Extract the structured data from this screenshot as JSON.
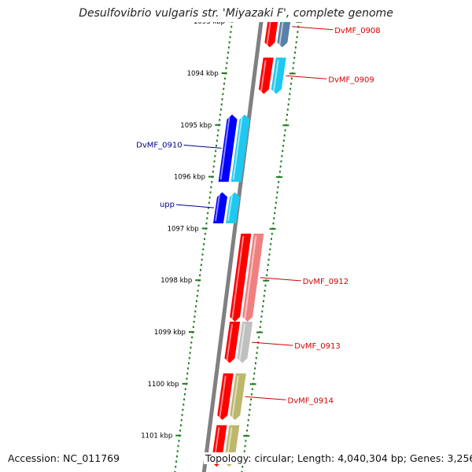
{
  "title": "Desulfovibrio vulgaris str. 'Miyazaki F', complete genome",
  "footer": {
    "accession": "Accession: NC_011769",
    "summary": "Topology: circular; Length: 4,040,304 bp; Genes: 3,256"
  },
  "colors": {
    "backbone": "#808080",
    "tick": "#1f7a1f",
    "label_forward": "#00008b",
    "label_reverse": "#d40000",
    "tick_label": "#000000"
  },
  "diagram": {
    "type": "linear genome map (zoomed circular)",
    "position_unit": "kbp",
    "ticks": [
      {
        "label": "1093 kbp",
        "pos": 1093
      },
      {
        "label": "1094 kbp",
        "pos": 1094
      },
      {
        "label": "1095 kbp",
        "pos": 1095
      },
      {
        "label": "1096 kbp",
        "pos": 1096
      },
      {
        "label": "1097 kbp",
        "pos": 1097
      },
      {
        "label": "1098 kbp",
        "pos": 1098
      },
      {
        "label": "1099 kbp",
        "pos": 1099
      },
      {
        "label": "1100 kbp",
        "pos": 1100
      },
      {
        "label": "1101 kbp",
        "pos": 1101
      }
    ],
    "genes": [
      {
        "label": "DvMF_0908",
        "strand": "-",
        "start": 1092.7,
        "end": 1093.5,
        "cds_color": "#5a7fa8"
      },
      {
        "label": "DvMF_0909",
        "strand": "-",
        "start": 1093.7,
        "end": 1094.4,
        "cds_color": "#1ec8f0"
      },
      {
        "label": "DvMF_0910",
        "strand": "+",
        "start": 1094.8,
        "end": 1096.1,
        "cds_color": "#1ec8f0"
      },
      {
        "label": "upp",
        "strand": "+",
        "start": 1096.3,
        "end": 1096.9,
        "cds_color": "#1ec8f0"
      },
      {
        "label": "DvMF_0912",
        "strand": "-",
        "start": 1097.1,
        "end": 1098.8,
        "cds_color": "#f08080"
      },
      {
        "label": "DvMF_0913",
        "strand": "-",
        "start": 1098.8,
        "end": 1099.6,
        "cds_color": "#c0c0c0"
      },
      {
        "label": "DvMF_0914",
        "strand": "-",
        "start": 1099.8,
        "end": 1100.7,
        "cds_color": "#bdb76b"
      },
      {
        "label": "",
        "strand": "-",
        "start": 1100.8,
        "end": 1101.6,
        "cds_color": "#bdb76b"
      }
    ]
  }
}
